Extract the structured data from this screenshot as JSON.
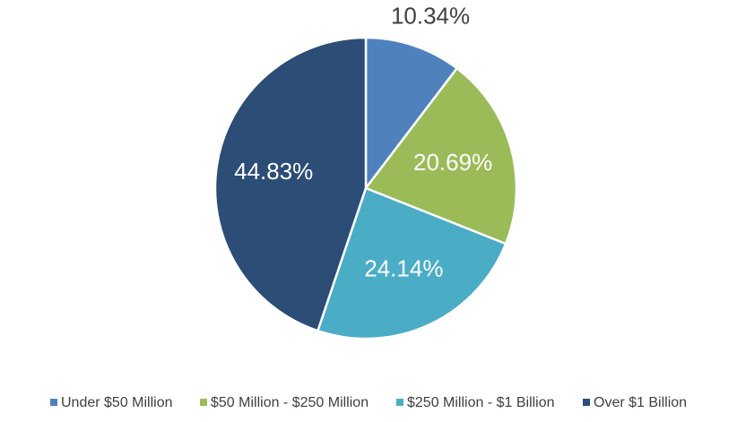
{
  "chart_data": {
    "type": "pie",
    "categories": [
      "Under $50 Million",
      "$50 Million - $250 Million",
      "$250 Million - $1 Billion",
      "Over $1 Billion"
    ],
    "values": [
      10.34,
      20.69,
      24.14,
      44.83
    ],
    "labels": [
      "10.34%",
      "20.69%",
      "24.14%",
      "44.83%"
    ],
    "colors": [
      "#4F81BD",
      "#9BBB59",
      "#4BACC6",
      "#2C4D75"
    ],
    "label_colors": [
      "#404040",
      "#ffffff",
      "#ffffff",
      "#ffffff"
    ],
    "start_angle_deg": 0,
    "direction": "clockwise",
    "legend_position": "bottom"
  }
}
